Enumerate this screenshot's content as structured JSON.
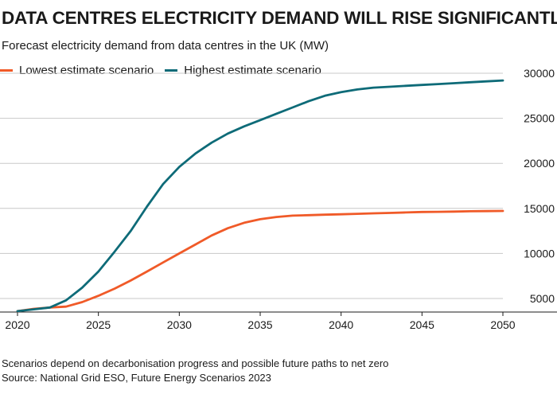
{
  "title": "DATA CENTRES ELECTRICITY DEMAND WILL RISE SIGNIFICANTLY",
  "subtitle": "Forecast electricity demand from data centres in the UK (MW)",
  "footnote": "Scenarios depend on decarbonisation progress and possible future paths to net zero",
  "source": "Source: National Grid ESO, Future Energy Scenarios 2023",
  "colors": {
    "lowest": "#f05a28",
    "highest": "#0e6b78",
    "grid": "#c8c8c8",
    "axis": "#1a1a1a"
  },
  "chart_data": {
    "type": "line",
    "title": "DATA CENTRES ELECTRICITY DEMAND WILL RISE SIGNIFICANTLY",
    "xlabel": "",
    "ylabel": "",
    "xlim": [
      2020,
      2050
    ],
    "ylim": [
      3500,
      30000
    ],
    "x_ticks": [
      2020,
      2025,
      2030,
      2035,
      2040,
      2045,
      2050
    ],
    "y_ticks": [
      5000,
      10000,
      15000,
      20000,
      25000,
      30000
    ],
    "y_axis_side": "right",
    "grid": "horizontal",
    "legend_position": "top-left",
    "x": [
      2020,
      2021,
      2022,
      2023,
      2024,
      2025,
      2026,
      2027,
      2028,
      2029,
      2030,
      2031,
      2032,
      2033,
      2034,
      2035,
      2036,
      2037,
      2038,
      2039,
      2040,
      2041,
      2042,
      2043,
      2044,
      2045,
      2046,
      2047,
      2048,
      2049,
      2050
    ],
    "series": [
      {
        "name": "Lowest estimate scenario",
        "color": "#f05a28",
        "values": [
          3600,
          3850,
          4000,
          4100,
          4600,
          5300,
          6100,
          7000,
          8000,
          9000,
          10000,
          11000,
          12000,
          12800,
          13400,
          13800,
          14050,
          14200,
          14250,
          14300,
          14350,
          14400,
          14450,
          14500,
          14550,
          14600,
          14620,
          14650,
          14680,
          14700,
          14720
        ]
      },
      {
        "name": "Highest estimate scenario",
        "color": "#0e6b78",
        "values": [
          3600,
          3800,
          4000,
          4800,
          6200,
          8000,
          10200,
          12500,
          15200,
          17700,
          19600,
          21100,
          22300,
          23300,
          24100,
          24800,
          25500,
          26200,
          26900,
          27500,
          27900,
          28200,
          28400,
          28500,
          28600,
          28700,
          28800,
          28900,
          29000,
          29100,
          29200
        ]
      }
    ]
  }
}
